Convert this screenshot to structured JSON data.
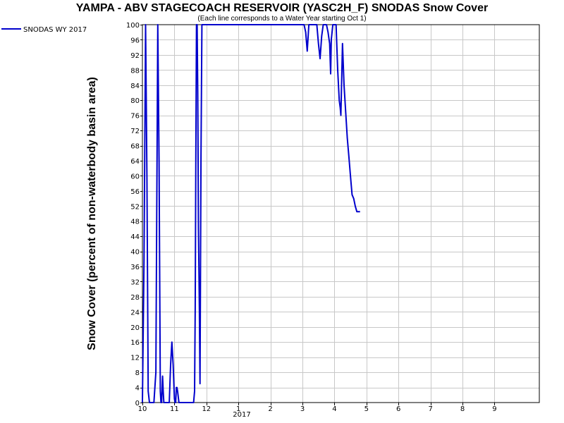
{
  "chart_data": {
    "type": "line",
    "title": "YAMPA - ABV STAGECOACH RESERVOIR (YASC2H_F) SNODAS Snow Cover",
    "subtitle": "(Each line corresponds to a Water Year starting Oct 1)",
    "ylabel": "Snow Cover (percent of non-waterbody basin area)",
    "xlabel": "",
    "ylim": [
      0,
      100
    ],
    "xlim": [
      0,
      12.4
    ],
    "grid": true,
    "legend_position": "top-left",
    "year_label": "2017",
    "x_ticks": [
      {
        "x": 0,
        "label": "10"
      },
      {
        "x": 1,
        "label": "11"
      },
      {
        "x": 2,
        "label": "12"
      },
      {
        "x": 3,
        "label": "1"
      },
      {
        "x": 4,
        "label": "2"
      },
      {
        "x": 5,
        "label": "3"
      },
      {
        "x": 6,
        "label": "4"
      },
      {
        "x": 7,
        "label": "5"
      },
      {
        "x": 8,
        "label": "6"
      },
      {
        "x": 9,
        "label": "7"
      },
      {
        "x": 10,
        "label": "8"
      },
      {
        "x": 11,
        "label": "9"
      }
    ],
    "y_ticks": [
      0,
      4,
      8,
      12,
      16,
      20,
      24,
      28,
      32,
      36,
      40,
      44,
      48,
      52,
      56,
      60,
      64,
      68,
      72,
      76,
      80,
      84,
      88,
      92,
      96,
      100
    ],
    "series": [
      {
        "name": "SNODAS WY 2017",
        "color": "#0000cc",
        "x": [
          0.0,
          0.05,
          0.1,
          0.14,
          0.18,
          0.22,
          0.26,
          0.3,
          0.36,
          0.42,
          0.48,
          0.52,
          0.56,
          0.58,
          0.6,
          0.63,
          0.65,
          0.67,
          0.7,
          0.72,
          0.75,
          0.8,
          0.84,
          0.88,
          0.92,
          0.96,
          1.0,
          1.02,
          1.04,
          1.06,
          1.08,
          1.1,
          1.14,
          1.18,
          1.22,
          1.26,
          1.32,
          1.4,
          1.48,
          1.55,
          1.6,
          1.63,
          1.65,
          1.67,
          1.69,
          1.71,
          1.73,
          1.75,
          1.78,
          1.8,
          1.83,
          1.86,
          1.9,
          2.0,
          2.2,
          2.4,
          2.6,
          2.8,
          3.0,
          3.2,
          3.4,
          4.0,
          4.6,
          4.9,
          5.05,
          5.1,
          5.15,
          5.2,
          5.25,
          5.35,
          5.4,
          5.45,
          5.5,
          5.55,
          5.6,
          5.65,
          5.7,
          5.72,
          5.75,
          5.8,
          5.85,
          5.88,
          5.9,
          5.95,
          6.0,
          6.05,
          6.1,
          6.15,
          6.18,
          6.2,
          6.25,
          6.3,
          6.35,
          6.4,
          6.45,
          6.5,
          6.52,
          6.55,
          6.6,
          6.65,
          6.7,
          6.75,
          6.8
        ],
        "y": [
          0,
          38,
          100,
          60,
          3,
          0,
          0,
          0,
          0,
          8,
          100,
          64,
          3,
          0,
          0,
          7,
          3,
          0,
          0,
          0,
          0,
          0,
          0,
          10,
          16,
          10,
          1,
          0,
          0,
          4,
          4,
          3,
          0,
          0,
          0,
          0,
          0,
          0,
          0,
          0,
          0,
          3,
          25,
          65,
          100,
          100,
          82,
          46,
          25,
          5,
          65,
          100,
          100,
          100,
          100,
          100,
          100,
          100,
          100,
          100,
          100,
          100,
          100,
          100,
          100,
          98,
          93,
          100,
          100,
          100,
          100,
          100,
          95,
          91,
          97,
          100,
          100,
          100,
          100,
          98,
          95,
          87,
          96,
          100,
          100,
          100,
          88,
          80,
          78,
          76,
          95,
          84,
          77,
          70,
          65,
          60,
          58,
          55,
          54,
          52,
          50.5,
          50.5,
          50.5
        ]
      }
    ]
  }
}
